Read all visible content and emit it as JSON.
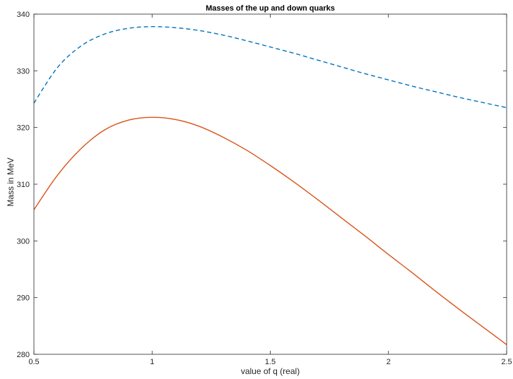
{
  "chart_data": {
    "type": "line",
    "title": "Masses of the up and down quarks",
    "xlabel": "value of q (real)",
    "ylabel": "Mass in MeV",
    "xlim": [
      0.5,
      2.5
    ],
    "ylim": [
      280,
      340
    ],
    "xticks": [
      0.5,
      1,
      1.5,
      2,
      2.5
    ],
    "xtick_labels": [
      "0.5",
      "1",
      "1.5",
      "2",
      "2.5"
    ],
    "yticks": [
      280,
      290,
      300,
      310,
      320,
      330,
      340
    ],
    "ytick_labels": [
      "280",
      "290",
      "300",
      "310",
      "320",
      "330",
      "340"
    ],
    "grid": false,
    "series": [
      {
        "color": "#0072bd",
        "style": "dashed",
        "x": [
          0.5,
          0.6,
          0.7,
          0.8,
          0.9,
          1.0,
          1.1,
          1.2,
          1.3,
          1.4,
          1.5,
          1.6,
          1.7,
          1.8,
          1.9,
          2.0,
          2.1,
          2.2,
          2.3,
          2.4,
          2.5
        ],
        "y": [
          324.3,
          330.6,
          334.4,
          336.5,
          337.5,
          337.8,
          337.6,
          337.1,
          336.3,
          335.3,
          334.2,
          333.1,
          331.9,
          330.7,
          329.5,
          328.4,
          327.3,
          326.3,
          325.3,
          324.4,
          323.5
        ]
      },
      {
        "color": "#d95319",
        "style": "solid",
        "x": [
          0.5,
          0.6,
          0.7,
          0.8,
          0.9,
          1.0,
          1.1,
          1.2,
          1.3,
          1.4,
          1.5,
          1.6,
          1.7,
          1.8,
          1.9,
          2.0,
          2.1,
          2.2,
          2.3,
          2.4,
          2.5
        ],
        "y": [
          305.5,
          311.6,
          316.3,
          319.6,
          321.3,
          321.8,
          321.4,
          320.2,
          318.3,
          316.0,
          313.3,
          310.4,
          307.3,
          304.1,
          300.9,
          297.6,
          294.4,
          291.1,
          287.9,
          284.8,
          281.7
        ]
      }
    ]
  }
}
